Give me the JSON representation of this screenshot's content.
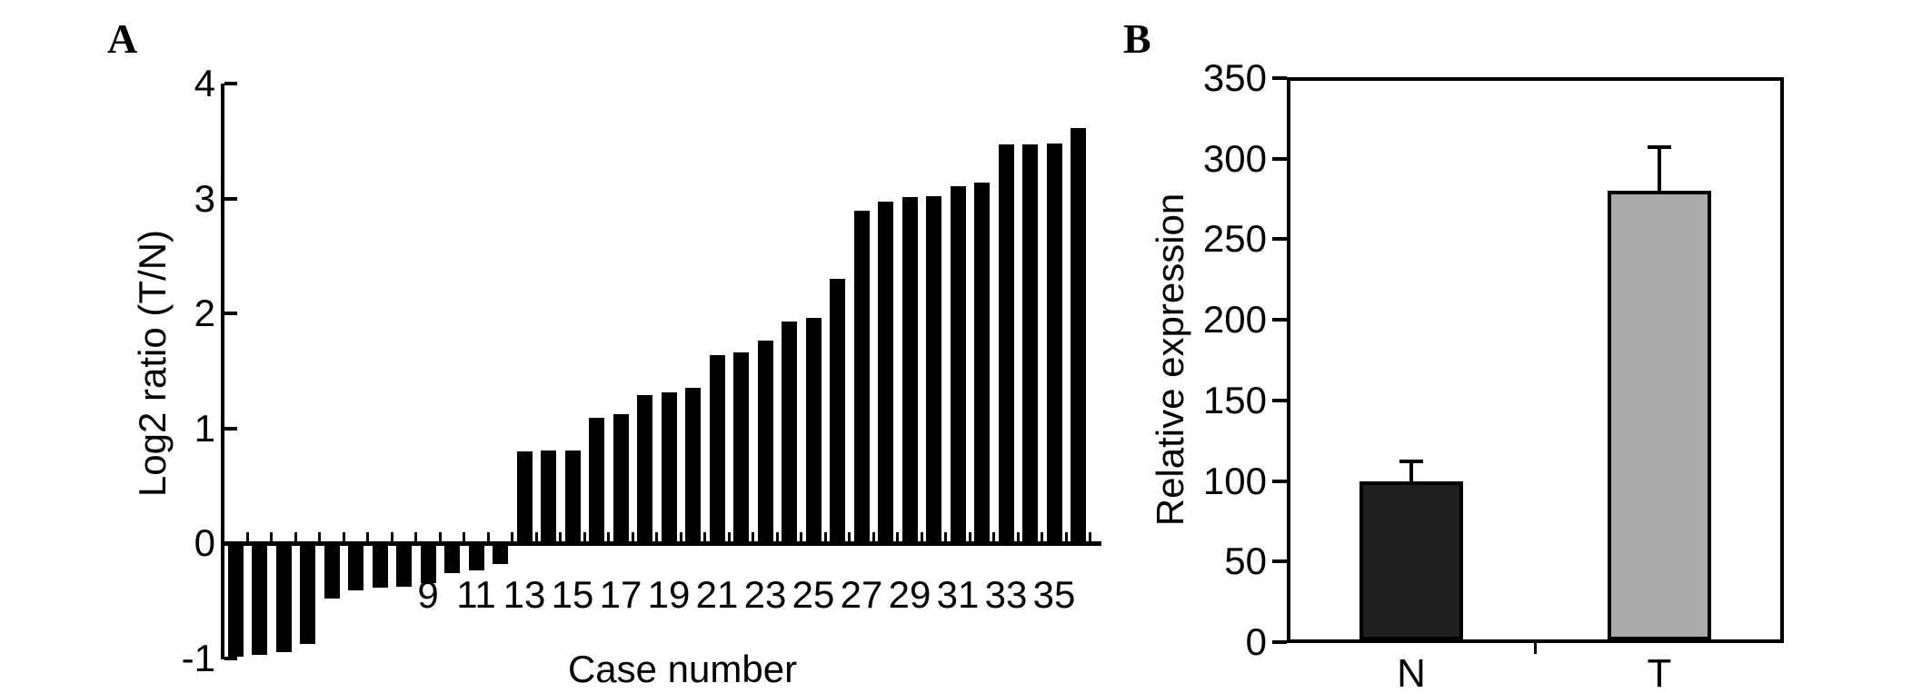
{
  "figure": {
    "background": "#ffffff",
    "axis_color": "#000000",
    "text_color": "#000000"
  },
  "chart_data": [
    {
      "type": "bar",
      "panel_label": "A",
      "title": "",
      "xlabel": "Case number",
      "ylabel": "Log2 ratio (T/N)",
      "ylim": [
        -1,
        4
      ],
      "yticks": [
        4,
        3,
        2,
        1,
        0,
        -1
      ],
      "ytick_labels": [
        "4",
        "3",
        "2",
        "1",
        "0",
        "-1"
      ],
      "x": [
        1,
        2,
        3,
        4,
        5,
        6,
        7,
        8,
        9,
        10,
        11,
        12,
        13,
        14,
        15,
        16,
        17,
        18,
        19,
        20,
        21,
        22,
        23,
        24,
        25,
        26,
        27,
        28,
        29,
        30,
        31,
        32,
        33,
        34,
        35,
        36
      ],
      "values": [
        -0.99,
        -0.97,
        -0.95,
        -0.88,
        -0.48,
        -0.41,
        -0.39,
        -0.38,
        -0.35,
        -0.26,
        -0.24,
        -0.18,
        0.8,
        0.81,
        0.81,
        1.09,
        1.12,
        1.29,
        1.31,
        1.35,
        1.64,
        1.66,
        1.76,
        1.93,
        1.96,
        2.3,
        2.89,
        2.97,
        3.01,
        3.02,
        3.11,
        3.14,
        3.47,
        3.47,
        3.48,
        3.61
      ],
      "labeled_cases": [
        9,
        11,
        13,
        15,
        17,
        19,
        21,
        23,
        25,
        27,
        29,
        31,
        33,
        35
      ],
      "xtick_labels": [
        "9",
        "11",
        "13",
        "15",
        "17",
        "19",
        "21",
        "23",
        "25",
        "27",
        "29",
        "31",
        "33",
        "35"
      ],
      "bar_color": "#000000",
      "grid": false,
      "legend": false
    },
    {
      "type": "bar",
      "panel_label": "B",
      "title": "",
      "xlabel": "",
      "ylabel": "Relative expression",
      "ylim": [
        0,
        350
      ],
      "yticks": [
        350,
        300,
        250,
        200,
        150,
        100,
        50,
        0
      ],
      "ytick_labels": [
        "350",
        "300",
        "250",
        "200",
        "150",
        "100",
        "50",
        "0"
      ],
      "categories": [
        "N",
        "T"
      ],
      "values": [
        100,
        280
      ],
      "error_bar_tops": [
        112,
        307
      ],
      "bar_colors": [
        "#1f1f1f",
        "#ababab"
      ],
      "bar_border_color": "#000000",
      "grid": false,
      "legend": false
    }
  ]
}
